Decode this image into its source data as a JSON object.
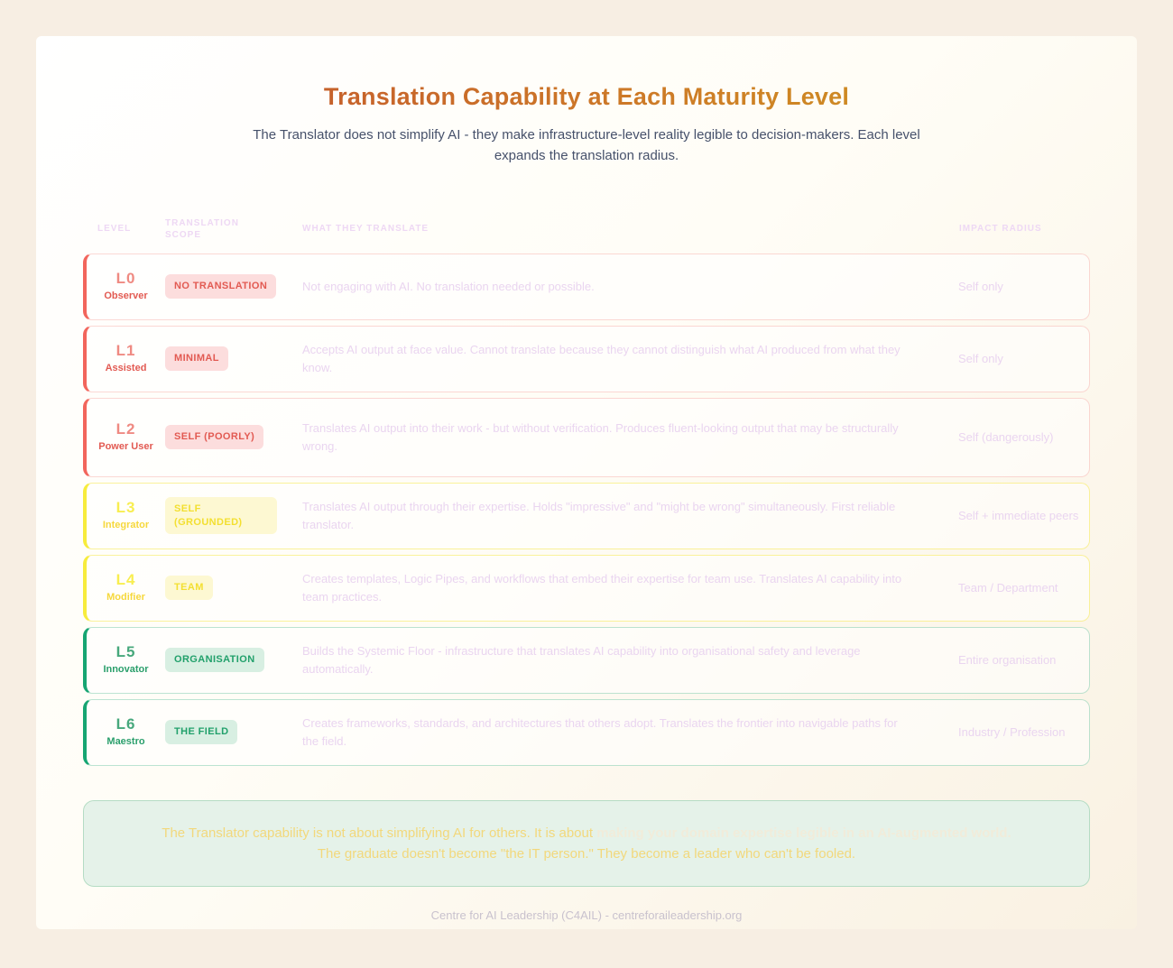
{
  "page": {
    "title": "Translation Capability at Each Maturity Level",
    "subtitle": "The Translator does not simplify AI - they make infrastructure-level reality legible to decision-makers. Each level expands the translation radius.",
    "footer": "Centre for AI Leadership (C4AIL) - centreforaileadership.org"
  },
  "colors": {
    "title_gradient_start": "#c14f2e",
    "title_gradient_end": "#d09a1f",
    "red_accent": "#f2655c",
    "yellow_accent": "#f7ec3c",
    "green_accent": "#16a572",
    "callout_background": "#e5f2e9",
    "callout_text": "#f2d87c",
    "muted_text": "#ead5f0"
  },
  "table": {
    "headers": [
      "LEVEL",
      "TRANSLATION SCOPE",
      "WHAT THEY TRANSLATE",
      "IMPACT RADIUS"
    ],
    "rows": [
      {
        "code": "L0",
        "name": "Observer",
        "scope": "NO TRANSLATION",
        "description": "Not engaging with AI. No translation needed or possible.",
        "impact": "Self only",
        "tone": "red"
      },
      {
        "code": "L1",
        "name": "Assisted",
        "scope": "MINIMAL",
        "description": "Accepts AI output at face value. Cannot translate because they cannot distinguish what AI produced from what they know.",
        "impact": "Self only",
        "tone": "red"
      },
      {
        "code": "L2",
        "name": "Power User",
        "scope": "SELF (POORLY)",
        "description": "Translates AI output into their work - but without verification. Produces fluent-looking output that may be structurally wrong.",
        "impact": "Self (dangerously)",
        "tone": "red"
      },
      {
        "code": "L3",
        "name": "Integrator",
        "scope": "SELF (GROUNDED)",
        "description": "Translates AI output through their expertise. Holds \"impressive\" and \"might be wrong\" simultaneously. First reliable translator.",
        "impact": "Self + immediate peers",
        "tone": "yellow"
      },
      {
        "code": "L4",
        "name": "Modifier",
        "scope": "TEAM",
        "description": "Creates templates, Logic Pipes, and workflows that embed their expertise for team use. Translates AI capability into team practices.",
        "impact": "Team / Department",
        "tone": "yellow"
      },
      {
        "code": "L5",
        "name": "Innovator",
        "scope": "ORGANISATION",
        "description": "Builds the Systemic Floor - infrastructure that translates AI capability into organisational safety and leverage automatically.",
        "impact": "Entire organisation",
        "tone": "green"
      },
      {
        "code": "L6",
        "name": "Maestro",
        "scope": "THE FIELD",
        "description": "Creates frameworks, standards, and architectures that others adopt. Translates the frontier into navigable paths for the field.",
        "impact": "Industry / Profession",
        "tone": "green"
      }
    ]
  },
  "callout": {
    "lead": "The Translator capability is not about simplifying AI for others. It is about ",
    "emphasis": "making your domain expertise legible in an AI-augmented world.",
    "line2": "The graduate doesn't become \"the IT person.\" They become a leader who can't be fooled."
  }
}
